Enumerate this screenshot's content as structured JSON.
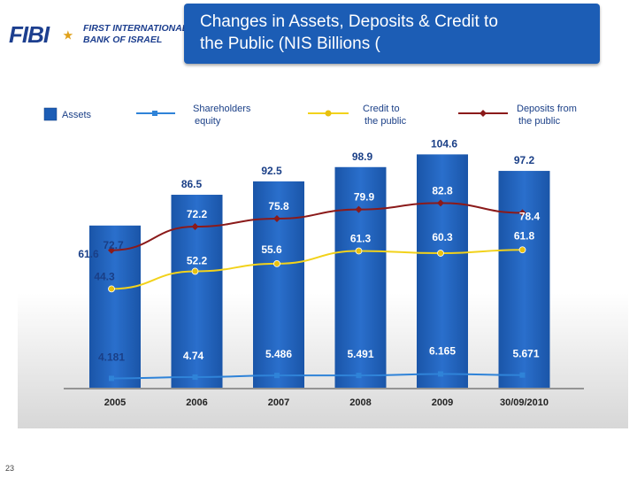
{
  "logo": {
    "mark": "FIBI",
    "line1": "FIRST INTERNATIONAL",
    "line2": "BANK OF ISRAEL"
  },
  "title": {
    "line1": "Changes in Assets, Deposits & Credit to",
    "line2": "the Public (NIS Billions ("
  },
  "page_number": "23",
  "colors": {
    "bar": "#1c5db5",
    "equity": "#2f83d8",
    "credit": "#f2d21b",
    "deposits": "#8b1a1a",
    "header": "#1c5db5"
  },
  "chart_data": {
    "type": "bar",
    "title": "Changes in Assets, Deposits & Credit to the Public (NIS Billions (",
    "categories": [
      "2005",
      "2006",
      "2007",
      "2008",
      "2009",
      "30/09/2010"
    ],
    "ylim": [
      0,
      110
    ],
    "grid": false,
    "legend_position": "top",
    "series": [
      {
        "name": "Assets",
        "kind": "bar",
        "values": [
          72.7,
          86.5,
          92.5,
          98.9,
          104.6,
          97.2
        ],
        "labels": [
          "72.7",
          "86.5",
          "92.5",
          "98.9",
          "104.6",
          "97.2"
        ]
      },
      {
        "name": "Shareholders equity",
        "kind": "line",
        "values": [
          4.181,
          4.74,
          5.486,
          5.491,
          6.165,
          5.671
        ],
        "labels": [
          "4.181",
          "4.74",
          "5.486",
          "5.491",
          "6.165",
          "5.671"
        ]
      },
      {
        "name": "Credit to the public",
        "kind": "line",
        "values": [
          44.3,
          52.2,
          55.6,
          61.3,
          60.3,
          61.8
        ],
        "labels": [
          "44.3",
          "52.2",
          "55.6",
          "61.3",
          "60.3",
          "61.8"
        ]
      },
      {
        "name": "Deposits from the public",
        "kind": "line",
        "values": [
          61.6,
          72.2,
          75.8,
          79.9,
          82.8,
          78.4
        ],
        "labels": [
          "61.6",
          "72.2",
          "75.8",
          "79.9",
          "82.8",
          "78.4"
        ]
      }
    ],
    "legend": [
      {
        "key": "Assets",
        "line1": "Assets",
        "line2": ""
      },
      {
        "key": "Shareholders equity",
        "line1": "Shareholders",
        "line2": "equity"
      },
      {
        "key": "Credit to the public",
        "line1": "Credit to",
        "line2": "the public"
      },
      {
        "key": "Deposits from the public",
        "line1": "Deposits from",
        "line2": "the public"
      }
    ]
  }
}
